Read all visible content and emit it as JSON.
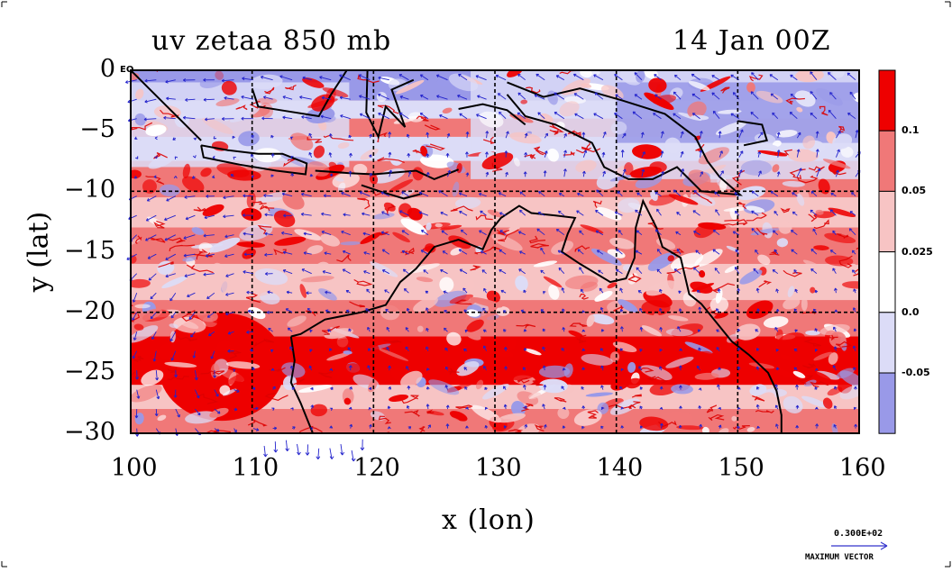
{
  "header": {
    "left_title": "uv zetaa 850 mb",
    "right_title": "14 Jan 00Z"
  },
  "axes": {
    "xlabel": "x (lon)",
    "ylabel": "y (lat)",
    "x_ticks": [
      "100",
      "110",
      "120",
      "130",
      "140",
      "150",
      "160"
    ],
    "y_ticks": [
      "0",
      "−5",
      "−10",
      "−15",
      "−20",
      "−25",
      "−30"
    ],
    "x_range": [
      100,
      160
    ],
    "y_range": [
      -30,
      0
    ],
    "equator_label": "EQ",
    "gridlines": "dashed at 10° longitude and 10° latitude"
  },
  "colorbar": {
    "labels": [
      "0.1",
      "0.05",
      "0.025",
      "0.0",
      "-0.05"
    ],
    "colors": [
      "#ee0000",
      "#f07878",
      "#f7c4c4",
      "#ffffff",
      "#dcdcf7",
      "#9999e8"
    ]
  },
  "vector_key": {
    "value": "0.300E+02",
    "label": "MAXIMUM VECTOR",
    "color": "#3333cc"
  },
  "palette": {
    "strong_red": "#ee0000",
    "mid_red": "#f07878",
    "light_red": "#f7c4c4",
    "light_blue": "#dcdcf7",
    "mid_blue": "#9999e8",
    "vector_blue": "#2222cc",
    "coast": "#000000"
  }
}
